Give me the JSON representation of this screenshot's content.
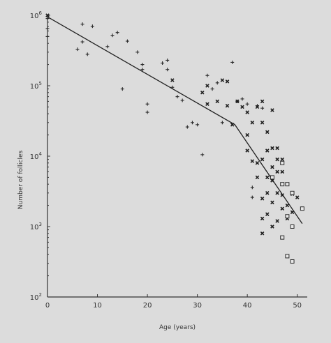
{
  "chart_data": {
    "type": "scatter",
    "xlabel": "Age (years)",
    "ylabel": "Number of follicles",
    "xlim": [
      0,
      52
    ],
    "ylim": [
      100,
      1000000
    ],
    "yscale": "log",
    "x_ticks": [
      "0",
      "10",
      "20",
      "30",
      "40",
      "50"
    ],
    "y_ticks": [
      {
        "base": "10",
        "exp": "2",
        "value": 100
      },
      {
        "base": "10",
        "exp": "3",
        "value": 1000
      },
      {
        "base": "10",
        "exp": "4",
        "value": 10000
      },
      {
        "base": "10",
        "exp": "5",
        "value": 100000
      },
      {
        "base": "10",
        "exp": "6",
        "value": 1000000
      }
    ],
    "grid": false,
    "series": [
      {
        "marker": "plus",
        "points": [
          [
            0,
            900000
          ],
          [
            0,
            650000
          ],
          [
            0,
            500000
          ],
          [
            6,
            330000
          ],
          [
            7,
            750000
          ],
          [
            7,
            420000
          ],
          [
            8,
            280000
          ],
          [
            9,
            700000
          ],
          [
            12,
            360000
          ],
          [
            13,
            520000
          ],
          [
            14,
            570000
          ],
          [
            15,
            90000
          ],
          [
            16,
            430000
          ],
          [
            18,
            300000
          ],
          [
            19,
            200000
          ],
          [
            19,
            170000
          ],
          [
            20,
            55000
          ],
          [
            20,
            42000
          ],
          [
            23,
            210000
          ],
          [
            24,
            170000
          ],
          [
            24,
            230000
          ],
          [
            25,
            95000
          ],
          [
            26,
            70000
          ],
          [
            27,
            62000
          ],
          [
            28,
            26000
          ],
          [
            29,
            30000
          ],
          [
            30,
            28000
          ],
          [
            31,
            10500
          ],
          [
            32,
            140000
          ],
          [
            33,
            90000
          ],
          [
            34,
            110000
          ],
          [
            35,
            30000
          ],
          [
            37,
            215000
          ],
          [
            38,
            60000
          ],
          [
            39,
            65000
          ],
          [
            40,
            55000
          ],
          [
            41,
            3600
          ],
          [
            41,
            2600
          ],
          [
            42,
            52000
          ],
          [
            43,
            48000
          ]
        ]
      },
      {
        "marker": "cross",
        "points": [
          [
            0,
            1000000
          ],
          [
            25,
            120000
          ],
          [
            31,
            80000
          ],
          [
            32,
            55000
          ],
          [
            32,
            100000
          ],
          [
            34,
            60000
          ],
          [
            35,
            120000
          ],
          [
            36,
            52000
          ],
          [
            36,
            115000
          ],
          [
            37,
            28000
          ],
          [
            38,
            60000
          ],
          [
            39,
            50000
          ],
          [
            40,
            42000
          ],
          [
            40,
            20000
          ],
          [
            40,
            12000
          ],
          [
            41,
            30000
          ],
          [
            41,
            8500
          ],
          [
            42,
            50000
          ],
          [
            42,
            8000
          ],
          [
            42,
            5000
          ],
          [
            43,
            60000
          ],
          [
            43,
            30000
          ],
          [
            43,
            9000
          ],
          [
            43,
            2500
          ],
          [
            43,
            1300
          ],
          [
            43,
            800
          ],
          [
            44,
            22000
          ],
          [
            44,
            12000
          ],
          [
            44,
            5000
          ],
          [
            44,
            3000
          ],
          [
            44,
            1500
          ],
          [
            45,
            45000
          ],
          [
            45,
            13000
          ],
          [
            45,
            7000
          ],
          [
            45,
            4500
          ],
          [
            45,
            2200
          ],
          [
            45,
            1000
          ],
          [
            46,
            13000
          ],
          [
            46,
            9000
          ],
          [
            46,
            6000
          ],
          [
            46,
            3000
          ],
          [
            46,
            1200
          ],
          [
            47,
            9000
          ],
          [
            47,
            6000
          ],
          [
            47,
            4000
          ],
          [
            47,
            2800
          ],
          [
            47,
            1800
          ],
          [
            48,
            2000
          ],
          [
            48,
            1300
          ],
          [
            49,
            1600
          ],
          [
            49,
            2900
          ],
          [
            50,
            2600
          ]
        ]
      },
      {
        "marker": "square",
        "points": [
          [
            45,
            5000
          ],
          [
            47,
            8000
          ],
          [
            47,
            4000
          ],
          [
            48,
            4000
          ],
          [
            48,
            1400
          ],
          [
            47,
            700
          ],
          [
            48,
            380
          ],
          [
            49,
            320
          ],
          [
            49,
            3000
          ],
          [
            49,
            1000
          ],
          [
            51,
            1800
          ]
        ]
      }
    ],
    "fit_line": [
      [
        0,
        950000
      ],
      [
        37.5,
        28000
      ],
      [
        51,
        1100
      ]
    ]
  }
}
